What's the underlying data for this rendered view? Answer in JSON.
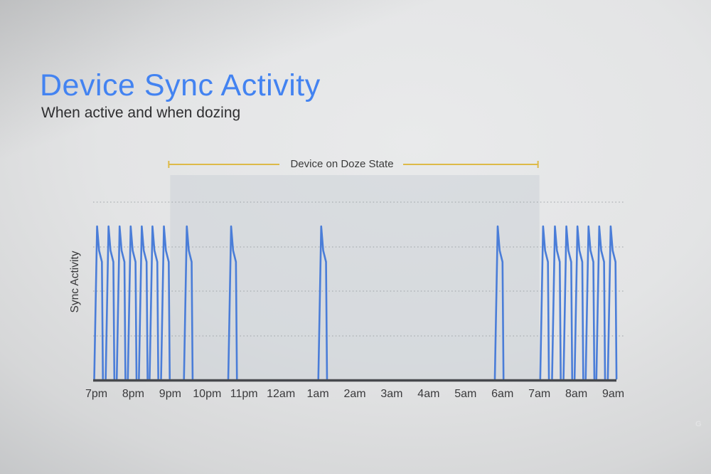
{
  "header": {
    "title": "Device Sync Activity",
    "subtitle": "When active and when dozing"
  },
  "chart_data": {
    "type": "line",
    "subtype": "impulse-spikes",
    "title": "Device Sync Activity",
    "subtitle": "When active and when dozing",
    "ylabel": "Sync Activity",
    "xlabel": "",
    "legend": "none",
    "grid": "dotted-horizontal",
    "x_ticks": [
      "7pm",
      "8pm",
      "9pm",
      "10pm",
      "11pm",
      "12am",
      "1am",
      "2am",
      "3am",
      "4am",
      "5am",
      "6am",
      "7am",
      "8am",
      "9am"
    ],
    "x_range_hours": [
      0,
      14
    ],
    "spike_times_hours_after_7pm": [
      0.02,
      0.33,
      0.63,
      0.93,
      1.23,
      1.52,
      1.83,
      2.45,
      3.65,
      6.09,
      10.87,
      12.1,
      12.42,
      12.73,
      13.03,
      13.33,
      13.62,
      13.93
    ],
    "spike_height": "uniform-max",
    "doze": {
      "label": "Device on Doze State",
      "start_tick": "9pm",
      "end_tick": "7am",
      "start_hour": 2,
      "end_hour": 12
    },
    "colors": {
      "spike_blue": "#4a7dd8",
      "title_blue": "#4383f1",
      "subtitle_text": "#2e2e30",
      "doze_line_gold": "#ddba48",
      "doze_fill": "#c9cfd6",
      "axis_text": "#3a3a3c",
      "baseline": "#47494d",
      "gridline": "#9aa0a4"
    }
  },
  "footer": {
    "watermark": "G"
  }
}
